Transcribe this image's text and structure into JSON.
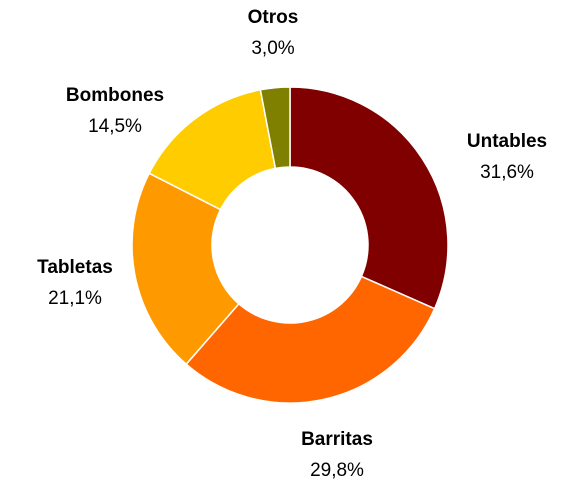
{
  "chart_data": {
    "type": "donut",
    "categories": [
      "Untables",
      "Barritas",
      "Tabletas",
      "Bombones",
      "Otros"
    ],
    "values": [
      31.6,
      29.8,
      21.1,
      14.5,
      3.0
    ],
    "value_labels": [
      "31,6%",
      "29,8%",
      "21,1%",
      "14,5%",
      "3,0%"
    ],
    "colors": [
      "#800000",
      "#ff6600",
      "#ff9900",
      "#ffcc00",
      "#808000"
    ]
  }
}
